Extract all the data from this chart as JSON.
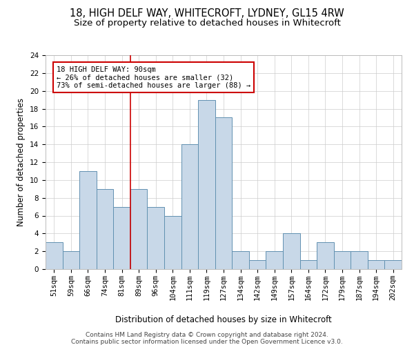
{
  "title1": "18, HIGH DELF WAY, WHITECROFT, LYDNEY, GL15 4RW",
  "title2": "Size of property relative to detached houses in Whitecroft",
  "xlabel": "Distribution of detached houses by size in Whitecroft",
  "ylabel": "Number of detached properties",
  "bar_labels": [
    "51sqm",
    "59sqm",
    "66sqm",
    "74sqm",
    "81sqm",
    "89sqm",
    "96sqm",
    "104sqm",
    "111sqm",
    "119sqm",
    "127sqm",
    "134sqm",
    "142sqm",
    "149sqm",
    "157sqm",
    "164sqm",
    "172sqm",
    "179sqm",
    "187sqm",
    "194sqm",
    "202sqm"
  ],
  "bar_values": [
    3,
    2,
    11,
    9,
    7,
    9,
    7,
    6,
    14,
    19,
    17,
    2,
    1,
    2,
    4,
    1,
    3,
    2,
    2,
    1,
    1
  ],
  "bar_color": "#c8d8e8",
  "bar_edge_color": "#6090b0",
  "vline_index": 4,
  "vline_color": "#cc0000",
  "annotation_text": "18 HIGH DELF WAY: 90sqm\n← 26% of detached houses are smaller (32)\n73% of semi-detached houses are larger (88) →",
  "annotation_box_color": "#cc0000",
  "ylim": [
    0,
    24
  ],
  "yticks": [
    0,
    2,
    4,
    6,
    8,
    10,
    12,
    14,
    16,
    18,
    20,
    22,
    24
  ],
  "footer1": "Contains HM Land Registry data © Crown copyright and database right 2024.",
  "footer2": "Contains public sector information licensed under the Open Government Licence v3.0.",
  "title1_fontsize": 10.5,
  "title2_fontsize": 9.5,
  "xlabel_fontsize": 8.5,
  "ylabel_fontsize": 8.5,
  "tick_fontsize": 7.5,
  "annot_fontsize": 7.5,
  "footer_fontsize": 6.5
}
